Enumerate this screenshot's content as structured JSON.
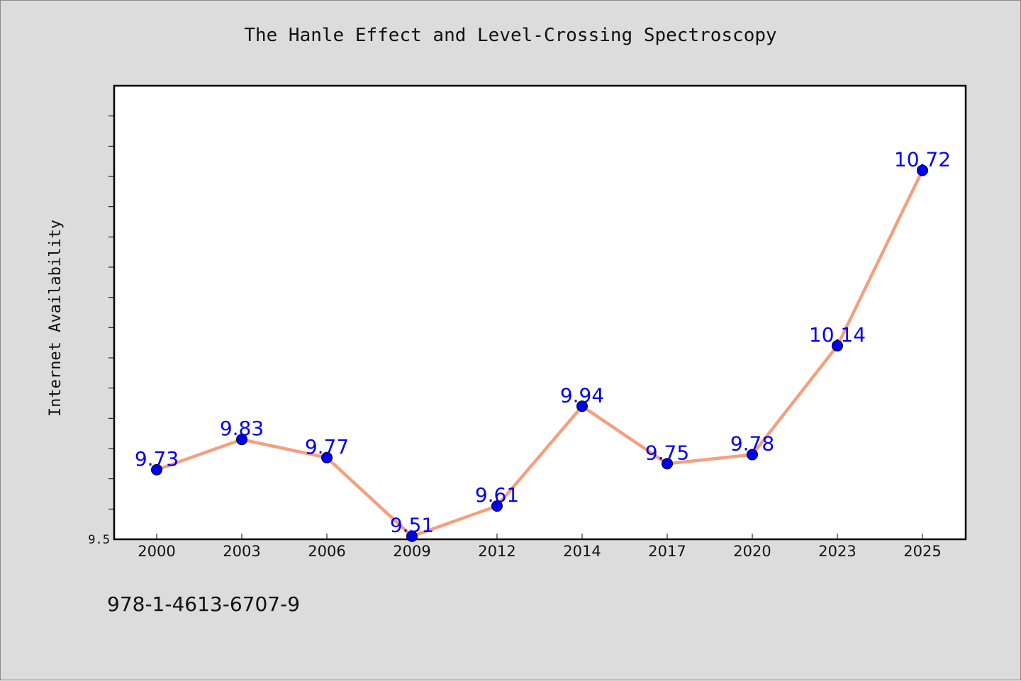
{
  "chart_data": {
    "type": "line",
    "title": "The Hanle Effect and Level-Crossing Spectroscopy",
    "ylabel": "Internet Availability",
    "xlabel": "",
    "categories": [
      "2000",
      "2003",
      "2006",
      "2009",
      "2012",
      "2014",
      "2017",
      "2020",
      "2023",
      "2025"
    ],
    "series": [
      {
        "values": [
          9.73,
          9.83,
          9.77,
          9.51,
          9.61,
          9.94,
          9.75,
          9.78,
          10.14,
          10.72
        ],
        "data_labels": [
          "9.73",
          "9.83",
          "9.77",
          "9.51",
          "9.61",
          "9.94",
          "9.75",
          "9.78",
          "10.14",
          "10.72"
        ],
        "line_color": "#f4a07e",
        "marker_color": "#0000ee",
        "label_color": "#0000ee"
      }
    ],
    "ylim": [
      9.5,
      11.0
    ],
    "y_tick_labels": [
      {
        "value": 9.5,
        "label": "9.5"
      }
    ],
    "y_minor_step": 0.1,
    "grid": false,
    "plot_background": "#ffffff",
    "figure_background": "#dcdcdc"
  },
  "footer": {
    "isbn": "978-1-4613-6707-9"
  }
}
